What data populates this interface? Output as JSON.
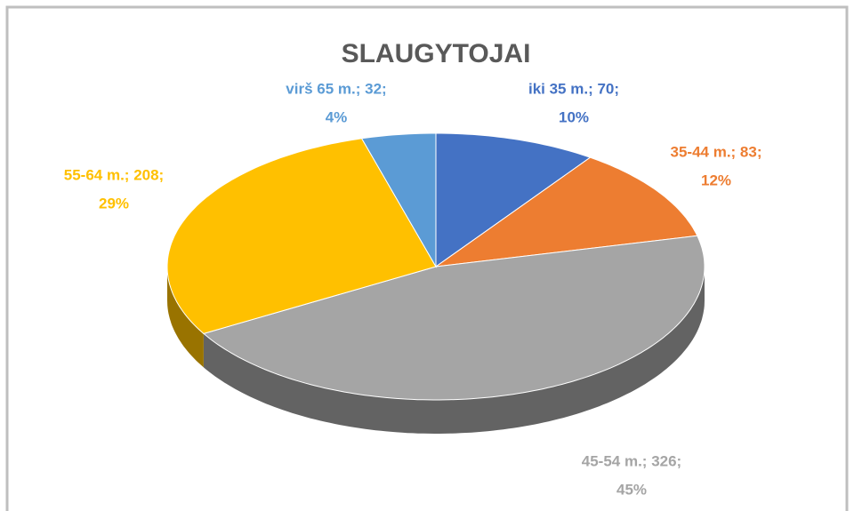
{
  "chart_data": {
    "type": "pie3d",
    "title": "SLAUGYTOJAI",
    "categories": [
      "iki 35 m.",
      "35-44 m.",
      "45-54 m.",
      "55-64 m.",
      "virš 65 m."
    ],
    "values": [
      70,
      83,
      326,
      208,
      32
    ],
    "value_labels": [
      "iki 35 m.; 70;",
      "35-44 m.; 83;",
      "45-54 m.; 326;",
      "55-64 m.; 208;",
      "virš 65 m.; 32;"
    ],
    "percent_labels": [
      "10%",
      "12%",
      "45%",
      "29%",
      "4%"
    ],
    "colors": [
      "#4472c4",
      "#ed7d31",
      "#a5a5a5",
      "#ffc000",
      "#5b9bd5"
    ]
  }
}
